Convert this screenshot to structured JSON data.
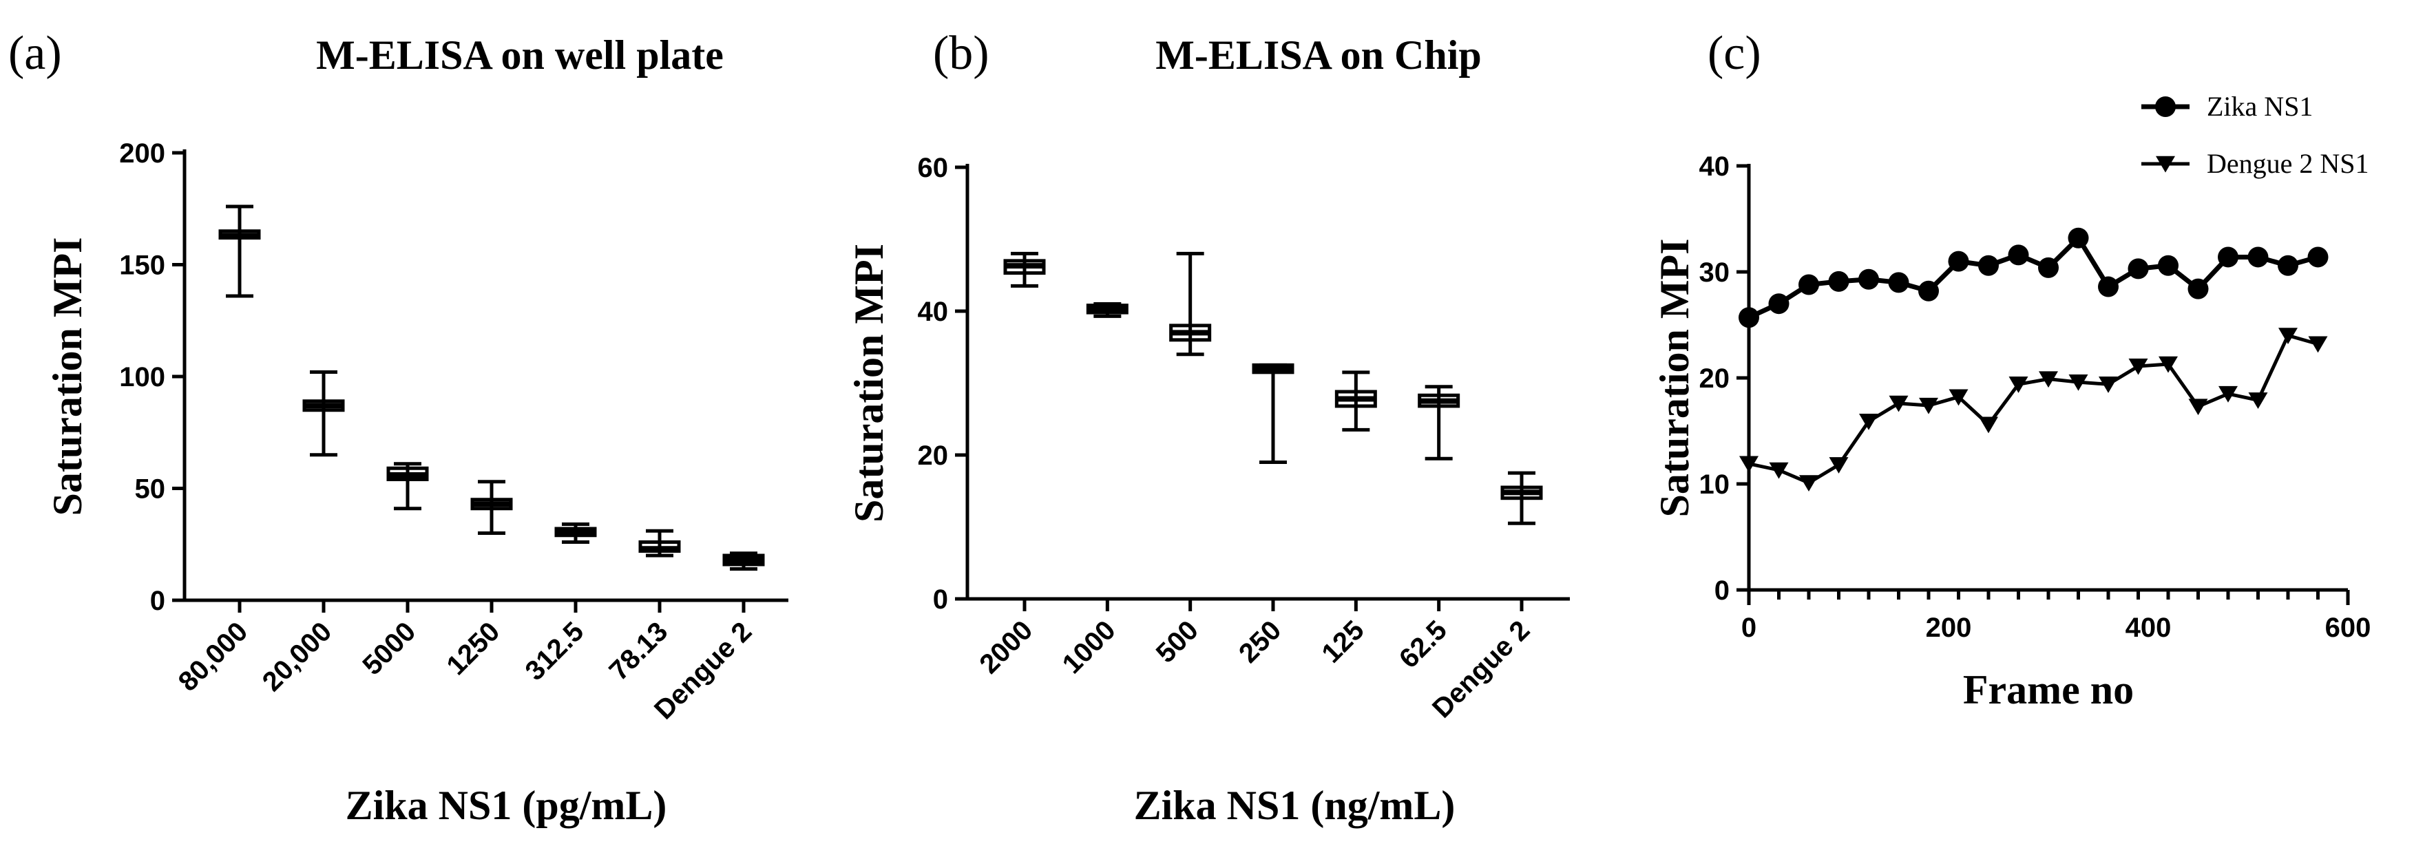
{
  "chart_data": [
    {
      "panel": "(a)",
      "type": "box",
      "title": "M-ELISA on well plate",
      "xlabel": "Zika NS1 (pg/mL)",
      "ylabel": "Saturation MPI",
      "ylim": [
        0,
        200
      ],
      "yticks": [
        "0",
        "50",
        "100",
        "150",
        "200"
      ],
      "categories": [
        "80,000",
        "20,000",
        "5000",
        "1250",
        "312.5",
        "78.13",
        "Dengue 2"
      ],
      "boxes": [
        {
          "low": 136,
          "q1": 162,
          "median": 163,
          "q3": 165,
          "high": 176
        },
        {
          "low": 65,
          "q1": 85,
          "median": 87,
          "q3": 89,
          "high": 102
        },
        {
          "low": 41,
          "q1": 54,
          "median": 56,
          "q3": 59,
          "high": 61
        },
        {
          "low": 30,
          "q1": 41,
          "median": 43,
          "q3": 45,
          "high": 53
        },
        {
          "low": 26,
          "q1": 29,
          "median": 30,
          "q3": 32,
          "high": 34
        },
        {
          "low": 20,
          "q1": 22,
          "median": 23,
          "q3": 26,
          "high": 31
        },
        {
          "low": 14,
          "q1": 16,
          "median": 18,
          "q3": 20,
          "high": 21
        }
      ]
    },
    {
      "panel": "(b)",
      "type": "box",
      "title": "M-ELISA on Chip",
      "xlabel": "Zika NS1 (ng/mL)",
      "ylabel": "Saturation MPI",
      "ylim": [
        0,
        60
      ],
      "yticks": [
        "0",
        "20",
        "40",
        "60"
      ],
      "categories": [
        "2000",
        "1000",
        "500",
        "250",
        "125",
        "62.5",
        "Dengue 2"
      ],
      "boxes": [
        {
          "low": 43.5,
          "q1": 45.3,
          "median": 46.3,
          "q3": 47.0,
          "high": 48.0
        },
        {
          "low": 39.3,
          "q1": 39.8,
          "median": 40.3,
          "q3": 40.8,
          "high": 41.0
        },
        {
          "low": 34.0,
          "q1": 36.0,
          "median": 37.0,
          "q3": 38.0,
          "high": 48.0
        },
        {
          "low": 19.0,
          "q1": 31.5,
          "median": 32.0,
          "q3": 32.5,
          "high": 32.5
        },
        {
          "low": 23.5,
          "q1": 26.8,
          "median": 27.8,
          "q3": 28.8,
          "high": 31.5
        },
        {
          "low": 19.5,
          "q1": 26.8,
          "median": 27.5,
          "q3": 28.3,
          "high": 29.5
        },
        {
          "low": 10.5,
          "q1": 14.0,
          "median": 14.8,
          "q3": 15.5,
          "high": 17.5
        }
      ]
    },
    {
      "panel": "(c)",
      "type": "line",
      "title": "",
      "xlabel": "Frame no",
      "ylabel": "Saturation MPI",
      "xlim": [
        0,
        600
      ],
      "ylim": [
        0,
        40
      ],
      "xticks": [
        "0",
        "200",
        "400",
        "600"
      ],
      "yticks": [
        "0",
        "10",
        "20",
        "30",
        "40"
      ],
      "legend_position": "top-right",
      "x": [
        0,
        30,
        60,
        90,
        120,
        150,
        180,
        210,
        240,
        270,
        300,
        330,
        360,
        390,
        420,
        450,
        480,
        510,
        540,
        570
      ],
      "series": [
        {
          "name": "Zika NS1",
          "marker": "circle",
          "values": [
            25.7,
            27.0,
            28.8,
            29.1,
            29.3,
            29.0,
            28.2,
            31.0,
            30.6,
            31.6,
            30.4,
            33.2,
            28.6,
            30.3,
            30.6,
            28.4,
            31.4,
            31.4,
            30.6,
            31.4
          ]
        },
        {
          "name": "Dengue 2 NS1",
          "marker": "triangle-down",
          "values": [
            11.9,
            11.3,
            10.1,
            11.8,
            15.9,
            17.6,
            17.4,
            18.2,
            15.6,
            19.4,
            19.9,
            19.6,
            19.4,
            21.1,
            21.3,
            17.3,
            18.5,
            17.9,
            24.0,
            23.2
          ]
        }
      ]
    }
  ]
}
